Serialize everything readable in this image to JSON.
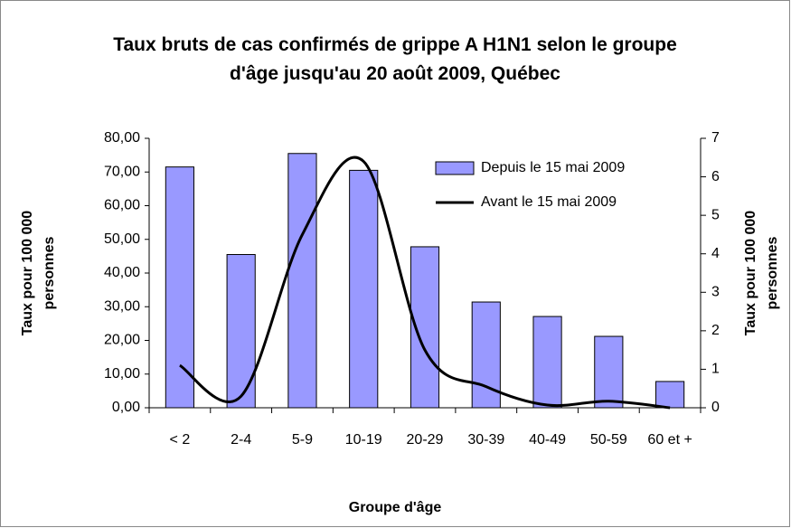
{
  "chart_data": {
    "type": "bar-line",
    "title": "Taux bruts de cas confirmés de grippe A H1N1 selon le groupe d'âge jusqu'au 20 août 2009, Québec",
    "x_label": "Groupe d'âge",
    "y_label": "Taux pour 100 000 personnes",
    "y2_label": "Taux pour 100 000 personnes",
    "categories": [
      "< 2",
      "2-4",
      "5-9",
      "10-19",
      "20-29",
      "30-39",
      "40-49",
      "50-59",
      "60 et +"
    ],
    "series": [
      {
        "name": "Depuis le 15 mai 2009",
        "type": "bar",
        "color": "#9999ff",
        "values": [
          71.5,
          45.5,
          75.5,
          70.5,
          47.8,
          31.4,
          27.1,
          21.2,
          7.8
        ]
      },
      {
        "name": "Avant le 15 mai 2009",
        "type": "line",
        "axis": "y2",
        "color": "#000000",
        "smooth": true,
        "values": [
          1.1,
          0.3,
          4.5,
          6.4,
          1.5,
          0.55,
          0.07,
          0.17,
          0.0
        ]
      }
    ],
    "ylim": [
      0,
      80
    ],
    "yticks": [
      {
        "value": 0,
        "label": "0,00"
      },
      {
        "value": 10,
        "label": "10,00"
      },
      {
        "value": 20,
        "label": "20,00"
      },
      {
        "value": 30,
        "label": "30,00"
      },
      {
        "value": 40,
        "label": "40,00"
      },
      {
        "value": 50,
        "label": "50,00"
      },
      {
        "value": 60,
        "label": "60,00"
      },
      {
        "value": 70,
        "label": "70,00"
      },
      {
        "value": 80,
        "label": "80,00"
      }
    ],
    "y2lim": [
      0,
      7
    ],
    "y2ticks": [
      0,
      1,
      2,
      3,
      4,
      5,
      6,
      7
    ],
    "grid": false,
    "legend": "upper-right"
  }
}
